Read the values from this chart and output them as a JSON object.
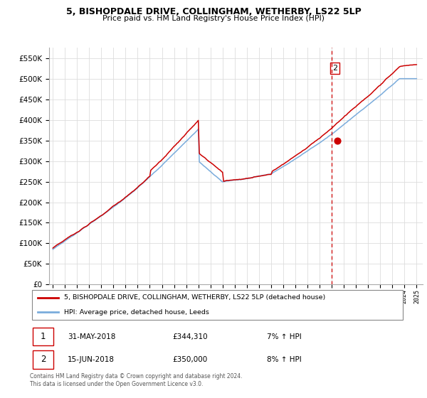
{
  "title": "5, BISHOPDALE DRIVE, COLLINGHAM, WETHERBY, LS22 5LP",
  "subtitle": "Price paid vs. HM Land Registry's House Price Index (HPI)",
  "hpi_label": "HPI: Average price, detached house, Leeds",
  "property_label": "5, BISHOPDALE DRIVE, COLLINGHAM, WETHERBY, LS22 5LP (detached house)",
  "annotation1_date": "31-MAY-2018",
  "annotation1_price": "£344,310",
  "annotation1_hpi": "7% ↑ HPI",
  "annotation2_date": "15-JUN-2018",
  "annotation2_price": "£350,000",
  "annotation2_hpi": "8% ↑ HPI",
  "footer": "Contains HM Land Registry data © Crown copyright and database right 2024.\nThis data is licensed under the Open Government Licence v3.0.",
  "hpi_color": "#7aacdc",
  "price_color": "#cc0000",
  "vline_color": "#cc0000",
  "vline_color2": "#7aacdc",
  "annotation_dot_color": "#cc0000",
  "grid_color": "#dddddd",
  "ylim": [
    0,
    575000
  ],
  "yticks": [
    0,
    50000,
    100000,
    150000,
    200000,
    250000,
    300000,
    350000,
    400000,
    450000,
    500000,
    550000
  ],
  "xmin": 1994.7,
  "xmax": 2025.5
}
